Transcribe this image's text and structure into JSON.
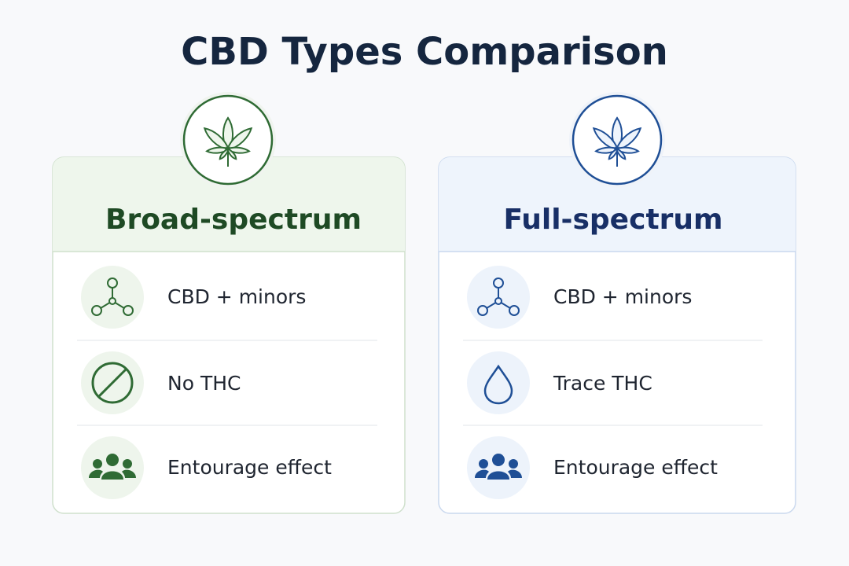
{
  "header": {
    "title": "CBD Types Comparison"
  },
  "cards": [
    {
      "title": "Broad-spectrum",
      "items": [
        "CBD + minors",
        "No THC",
        "Entourage effect"
      ]
    },
    {
      "title": "Full-spectrum",
      "items": [
        "CBD + minors",
        "Trace THC",
        "Entourage effect"
      ]
    }
  ]
}
